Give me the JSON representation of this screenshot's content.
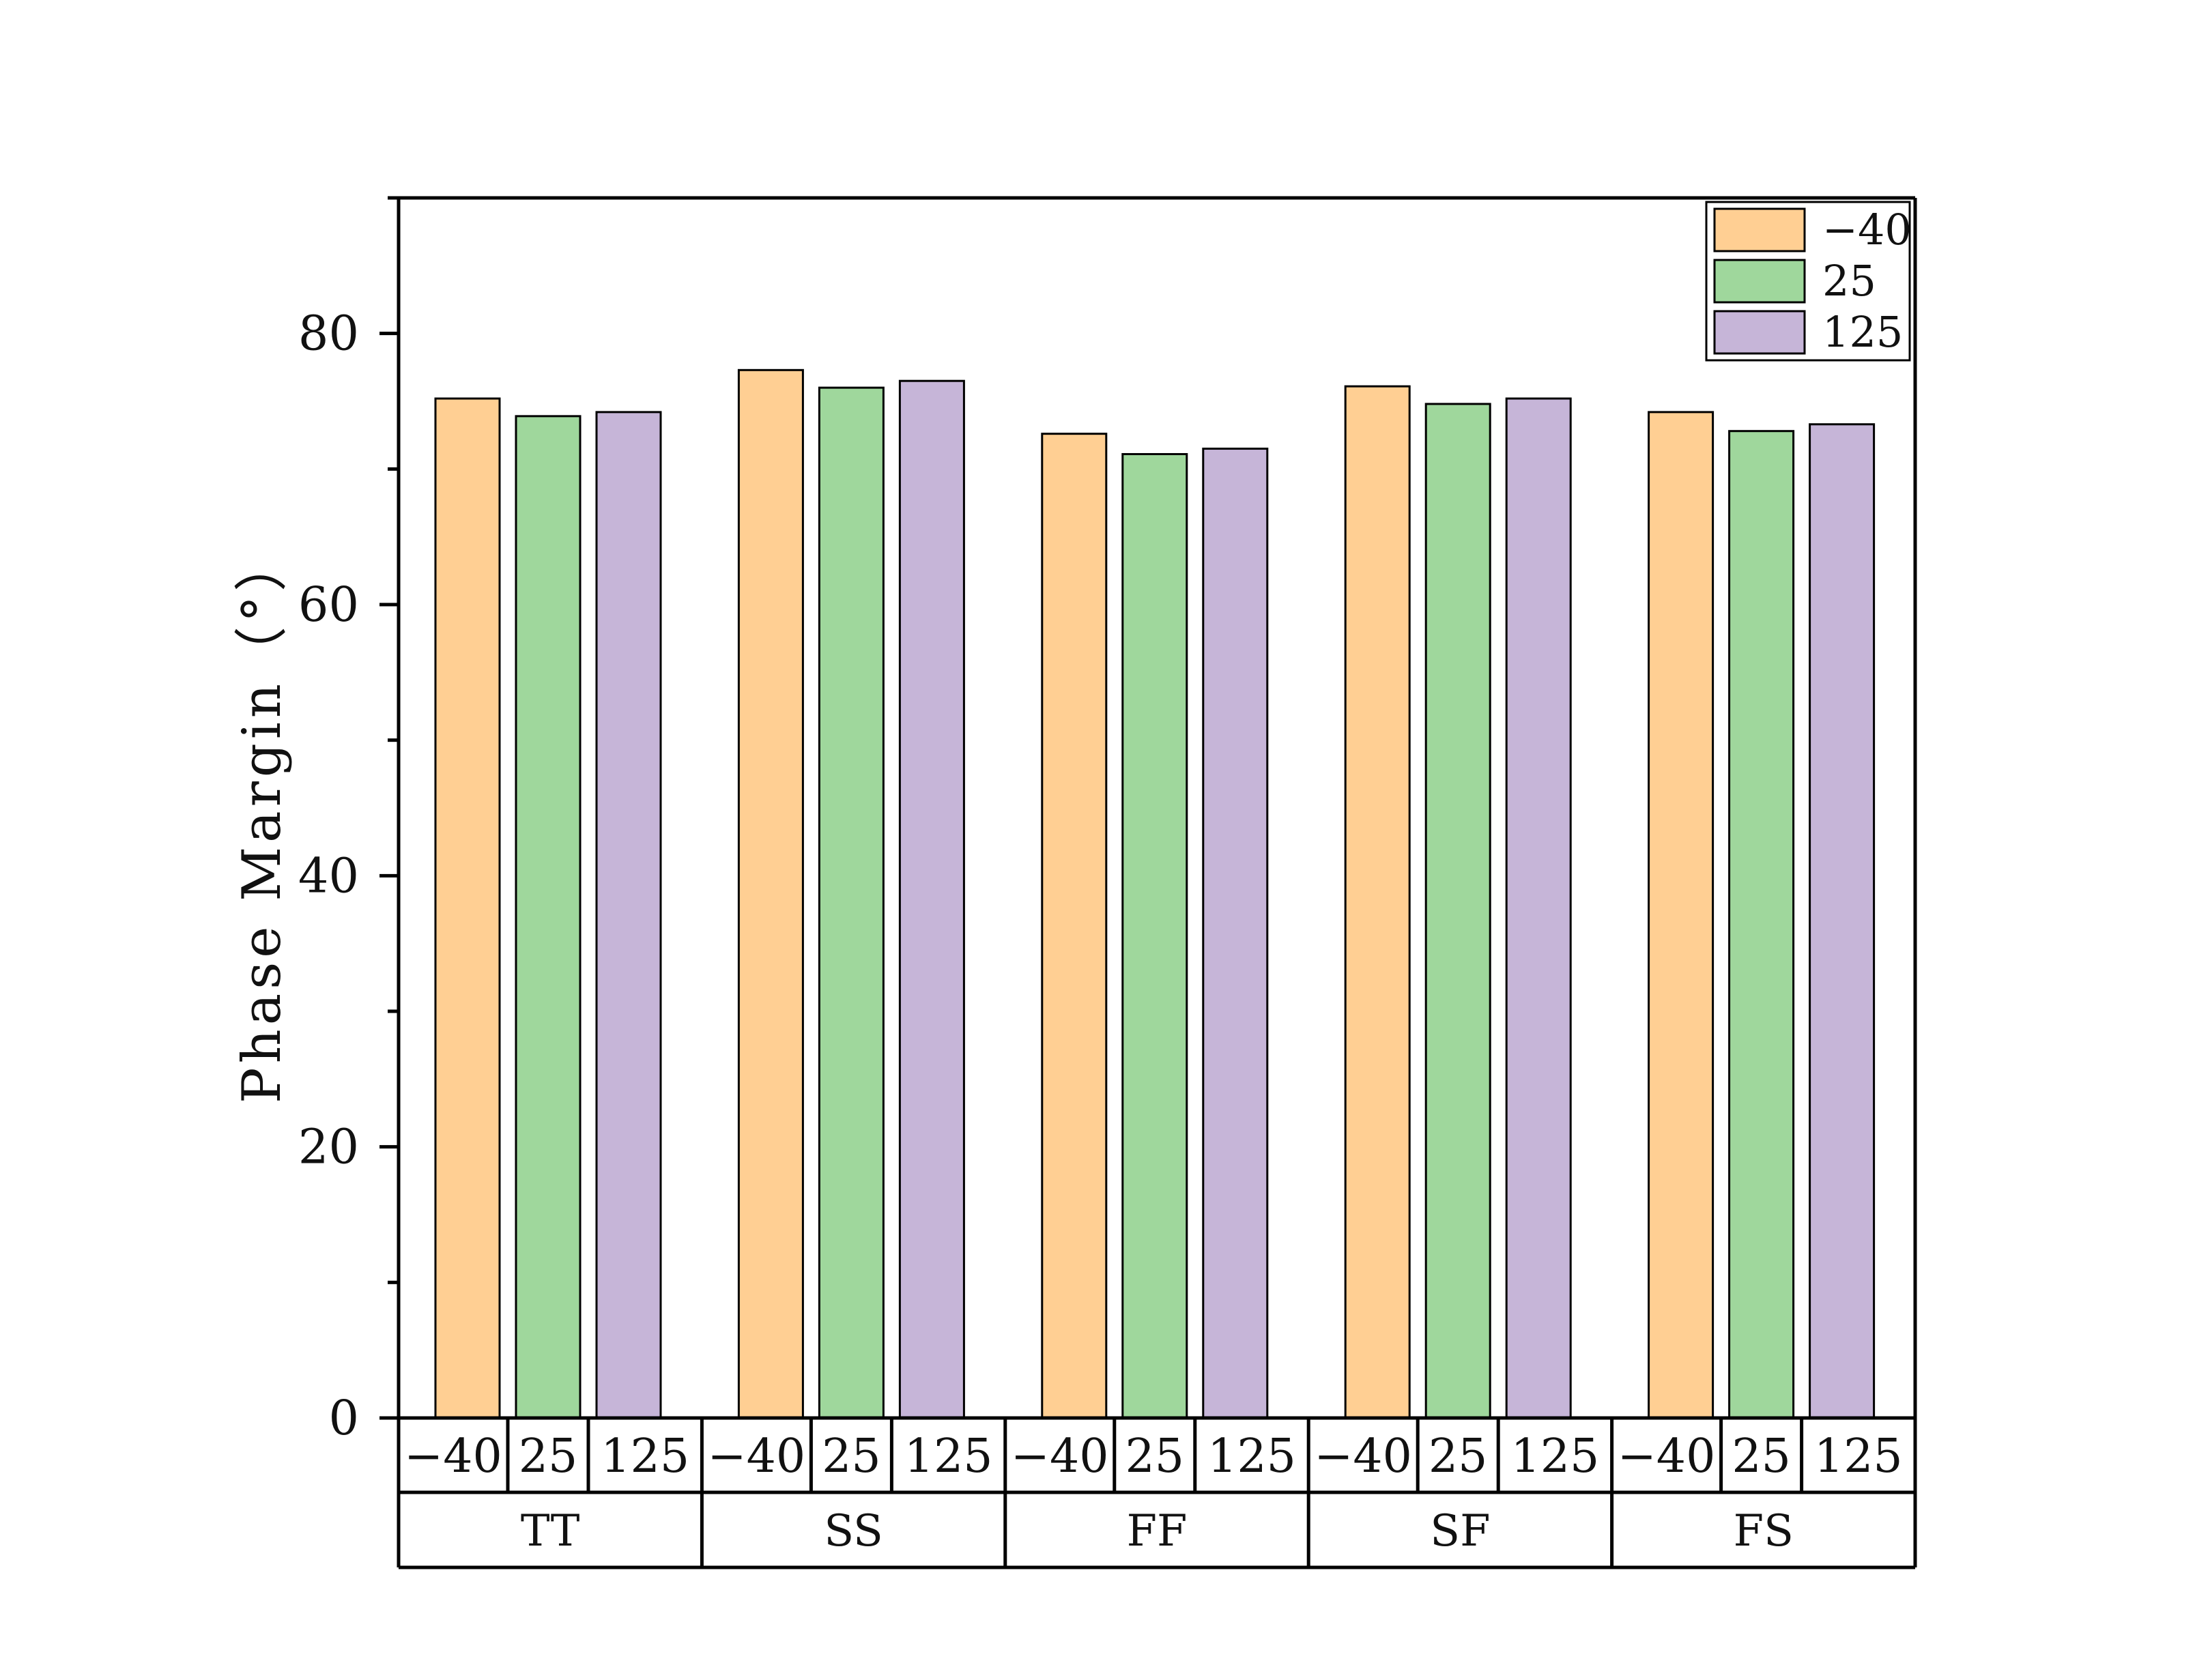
{
  "chart_data": {
    "type": "bar",
    "ylabel": "Phase Margin（°）",
    "ylim": [
      0,
      90
    ],
    "yticks": [
      0,
      20,
      40,
      60,
      80
    ],
    "yminor_step": 10,
    "grid": false,
    "legend_position": "top-right",
    "groups": [
      "TT",
      "SS",
      "FF",
      "SF",
      "FS"
    ],
    "sub_categories": [
      "−40",
      "25",
      "125"
    ],
    "series": [
      {
        "name": "−40",
        "color": "#FFCF93",
        "values": [
          75.2,
          77.3,
          72.6,
          76.1,
          74.2
        ]
      },
      {
        "name": "25",
        "color": "#9FD79C",
        "values": [
          73.9,
          76.0,
          71.1,
          74.8,
          72.8
        ]
      },
      {
        "name": "125",
        "color": "#C6B5D8",
        "values": [
          74.2,
          76.5,
          71.5,
          75.2,
          73.3
        ]
      }
    ]
  }
}
